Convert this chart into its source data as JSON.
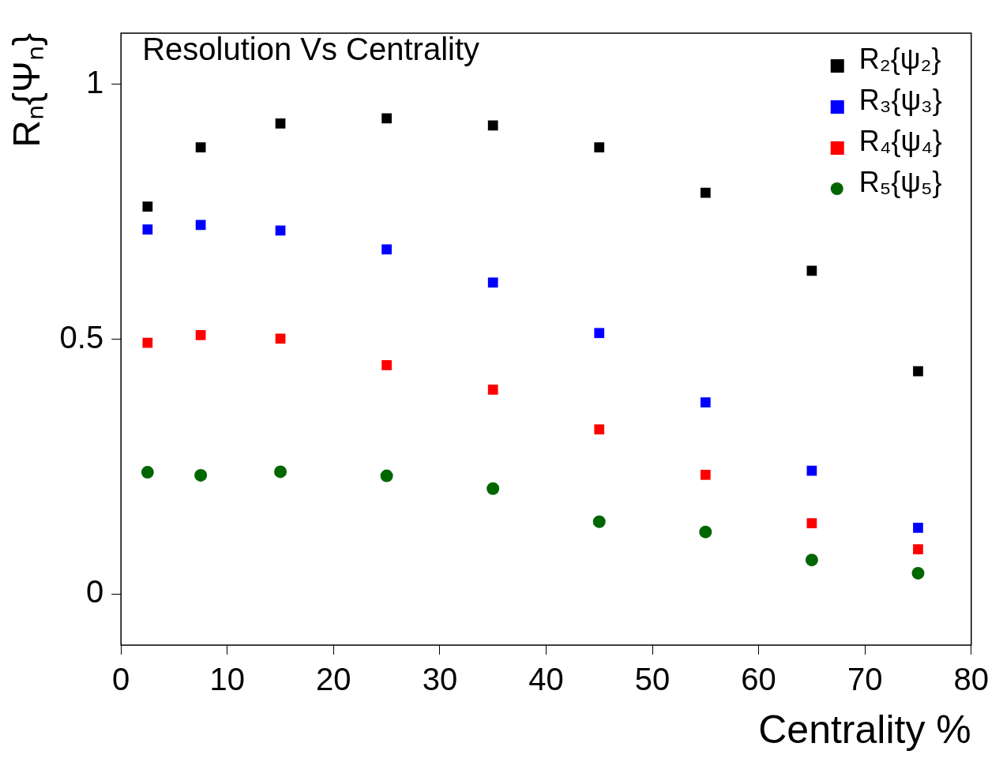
{
  "chart_data": {
    "type": "scatter",
    "title": "Resolution Vs Centrality",
    "xlabel": "Centrality %",
    "ylabel": "Rₙ{Ψₙ}",
    "x": [
      2.5,
      7.5,
      15,
      25,
      35,
      45,
      55,
      65,
      75
    ],
    "xlim": [
      0,
      80
    ],
    "xticks": [
      0,
      10,
      20,
      30,
      40,
      50,
      60,
      70,
      80
    ],
    "ylim": [
      -0.1,
      1.1
    ],
    "yticks": [
      0,
      0.5,
      1
    ],
    "grid": false,
    "legend": "top right",
    "series": [
      {
        "name": "R₂{ψ₂}",
        "color": "#000000",
        "marker": "square",
        "values": [
          0.76,
          0.876,
          0.923,
          0.933,
          0.919,
          0.876,
          0.787,
          0.634,
          0.437
        ]
      },
      {
        "name": "R₃{ψ₃}",
        "color": "#0000ff",
        "marker": "square",
        "values": [
          0.715,
          0.724,
          0.713,
          0.676,
          0.611,
          0.512,
          0.376,
          0.242,
          0.13
        ]
      },
      {
        "name": "R₄{ψ₄}",
        "color": "#ff0000",
        "marker": "square",
        "values": [
          0.493,
          0.508,
          0.501,
          0.449,
          0.401,
          0.323,
          0.234,
          0.139,
          0.088
        ]
      },
      {
        "name": "R₅{ψ₅}",
        "color": "#006600",
        "marker": "circle",
        "values": [
          0.239,
          0.233,
          0.24,
          0.232,
          0.207,
          0.142,
          0.122,
          0.067,
          0.041
        ]
      }
    ]
  }
}
